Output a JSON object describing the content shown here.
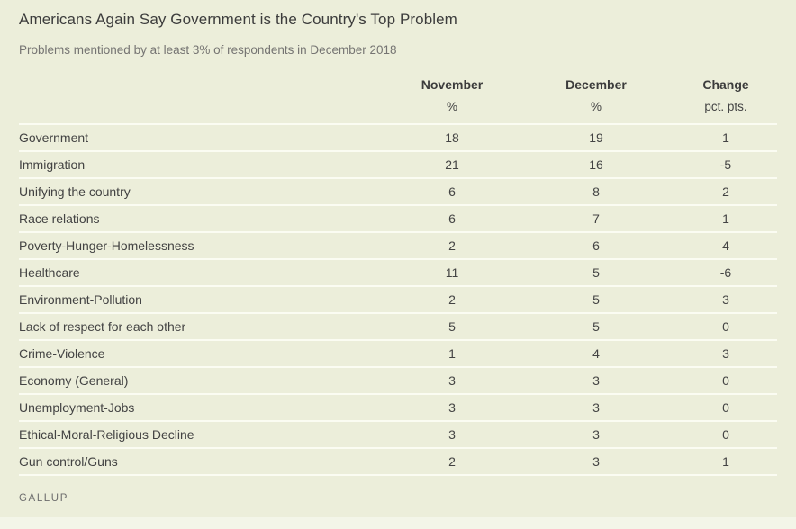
{
  "page": {
    "title": "Americans Again Say Government is the Country's Top Problem",
    "subtitle": "Problems mentioned by at least 3% of respondents in December 2018",
    "source": "GALLUP"
  },
  "colors": {
    "background": "#eceeda",
    "row_divider": "#fbfcf2",
    "heading_text": "#3c3c3c",
    "subtitle_text": "#757472",
    "body_text": "#434343",
    "source_text": "#6c6c6c"
  },
  "chart_data": {
    "type": "table",
    "title": "Americans Again Say Government is the Country's Top Problem",
    "subtitle": "Problems mentioned by at least 3% of respondents in December 2018",
    "columns": [
      "",
      "November",
      "December",
      "Change"
    ],
    "units": [
      "",
      "%",
      "%",
      "pct. pts."
    ],
    "source": "GALLUP",
    "rows": [
      {
        "label": "Government",
        "november": 18,
        "december": 19,
        "change": 1
      },
      {
        "label": "Immigration",
        "november": 21,
        "december": 16,
        "change": -5
      },
      {
        "label": "Unifying the country",
        "november": 6,
        "december": 8,
        "change": 2
      },
      {
        "label": "Race relations",
        "november": 6,
        "december": 7,
        "change": 1
      },
      {
        "label": "Poverty-Hunger-Homelessness",
        "november": 2,
        "december": 6,
        "change": 4
      },
      {
        "label": "Healthcare",
        "november": 11,
        "december": 5,
        "change": -6
      },
      {
        "label": "Environment-Pollution",
        "november": 2,
        "december": 5,
        "change": 3
      },
      {
        "label": "Lack of respect for each other",
        "november": 5,
        "december": 5,
        "change": 0
      },
      {
        "label": "Crime-Violence",
        "november": 1,
        "december": 4,
        "change": 3
      },
      {
        "label": "Economy (General)",
        "november": 3,
        "december": 3,
        "change": 0
      },
      {
        "label": "Unemployment-Jobs",
        "november": 3,
        "december": 3,
        "change": 0
      },
      {
        "label": "Ethical-Moral-Religious Decline",
        "november": 3,
        "december": 3,
        "change": 0
      },
      {
        "label": "Gun control/Guns",
        "november": 2,
        "december": 3,
        "change": 1
      }
    ]
  }
}
